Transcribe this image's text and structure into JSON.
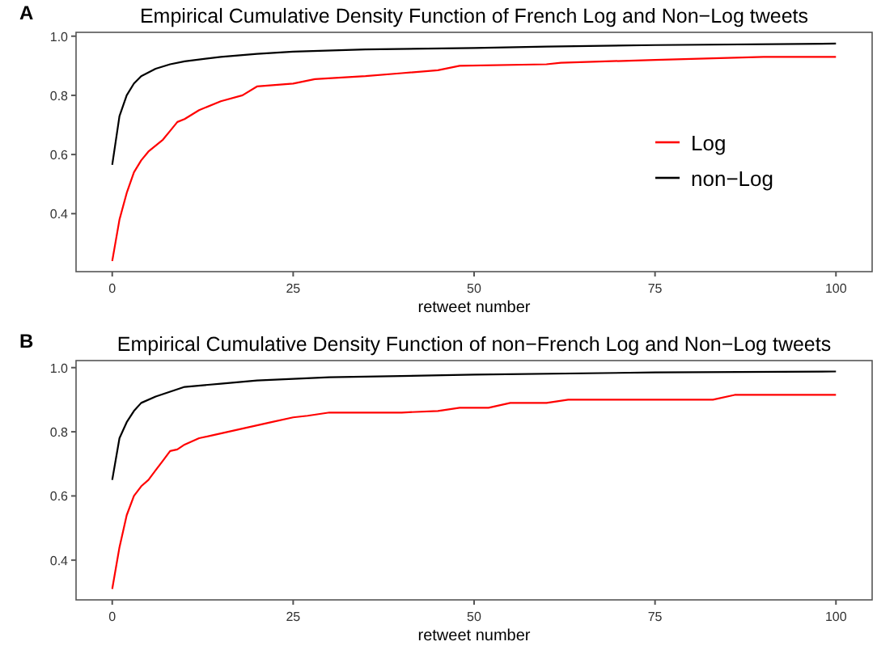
{
  "chart_data": [
    {
      "type": "line",
      "title": "Empirical Cumulative Density Function of French Log and Non−Log tweets",
      "xlabel": "retweet number",
      "xlim": [
        -5,
        105
      ],
      "xticks": [
        0,
        25,
        50,
        75,
        100
      ],
      "ylim": [
        0.204,
        1.013
      ],
      "yticks": [
        0.4,
        0.6,
        0.8,
        {
          "value": 1,
          "label": "1.0"
        }
      ],
      "grid": false,
      "legend": "right",
      "annotations": [
        "A"
      ],
      "series": [
        {
          "name": "Log",
          "color": "#ff0000",
          "x": [
            0,
            1,
            2,
            3,
            4,
            5,
            6,
            7,
            8,
            9,
            10,
            12,
            15,
            18,
            20,
            25,
            28,
            35,
            40,
            45,
            48,
            60,
            62,
            75,
            90,
            100
          ],
          "values": [
            0.24,
            0.38,
            0.47,
            0.54,
            0.58,
            0.61,
            0.63,
            0.65,
            0.68,
            0.71,
            0.72,
            0.75,
            0.78,
            0.8,
            0.83,
            0.84,
            0.855,
            0.865,
            0.875,
            0.885,
            0.9,
            0.905,
            0.91,
            0.92,
            0.93,
            0.93
          ]
        },
        {
          "name": "non−Log",
          "color": "#000000",
          "x": [
            0,
            1,
            2,
            3,
            4,
            6,
            8,
            10,
            15,
            20,
            25,
            35,
            50,
            60,
            75,
            100
          ],
          "values": [
            0.565,
            0.73,
            0.8,
            0.84,
            0.865,
            0.89,
            0.905,
            0.915,
            0.93,
            0.94,
            0.948,
            0.955,
            0.96,
            0.965,
            0.97,
            0.975
          ]
        }
      ]
    },
    {
      "type": "line",
      "title": "Empirical Cumulative Density Function of non−French Log and Non−Log tweets",
      "xlabel": "retweet number",
      "xlim": [
        -5,
        105
      ],
      "xticks": [
        0,
        25,
        50,
        75,
        100
      ],
      "ylim": [
        0.276,
        1.022
      ],
      "yticks": [
        0.4,
        0.6,
        0.8,
        {
          "value": 1,
          "label": "1.0"
        }
      ],
      "grid": false,
      "legend": false,
      "annotations": [
        "B"
      ],
      "series": [
        {
          "color": "#ff0000",
          "x": [
            0,
            1,
            2,
            3,
            4,
            5,
            6,
            7,
            8,
            9,
            10,
            12,
            14,
            17,
            20,
            22,
            25,
            27,
            30,
            40,
            45,
            48,
            52,
            55,
            60,
            63,
            83,
            86,
            100
          ],
          "values": [
            0.31,
            0.44,
            0.54,
            0.6,
            0.63,
            0.65,
            0.68,
            0.71,
            0.74,
            0.745,
            0.76,
            0.78,
            0.79,
            0.805,
            0.82,
            0.83,
            0.845,
            0.85,
            0.86,
            0.86,
            0.865,
            0.875,
            0.875,
            0.89,
            0.89,
            0.9,
            0.9,
            0.915,
            0.915
          ]
        },
        {
          "color": "#000000",
          "x": [
            0,
            1,
            2,
            3,
            4,
            6,
            8,
            10,
            15,
            20,
            30,
            50,
            75,
            100
          ],
          "values": [
            0.65,
            0.78,
            0.83,
            0.865,
            0.89,
            0.91,
            0.925,
            0.94,
            0.95,
            0.96,
            0.97,
            0.978,
            0.985,
            0.988
          ]
        }
      ]
    }
  ]
}
